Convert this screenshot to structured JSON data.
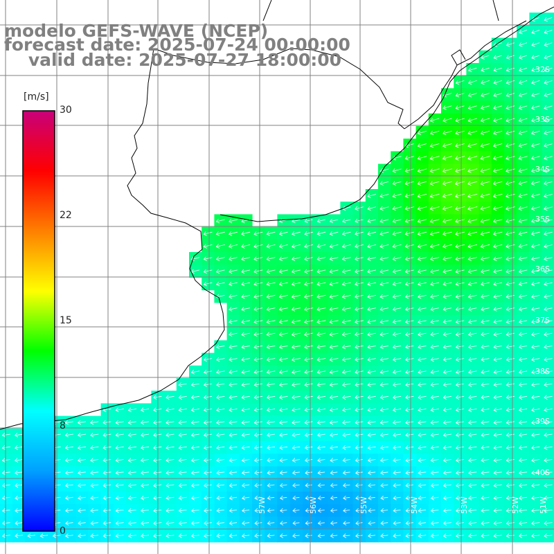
{
  "title": {
    "line1": "modelo GEFS-WAVE (NCEP)",
    "line2": "forecast date: 2025-07-24 00:00:00",
    "line3": "    valid date: 2025-07-27 18:00:00"
  },
  "colorbar": {
    "unit": "[m/s]",
    "ticks": [
      "30",
      "22",
      "15",
      "8",
      "0"
    ],
    "min": 0,
    "max": 30,
    "colors": [
      "#0000ff",
      "#00a0ff",
      "#00ffff",
      "#00ff00",
      "#ffff00",
      "#ff8000",
      "#ff0000",
      "#c8007a"
    ]
  },
  "lat_labels": [
    "32S",
    "33S",
    "34S",
    "35S",
    "36S",
    "37S",
    "38S",
    "39S",
    "40S"
  ],
  "lon_labels": [
    "57W",
    "56W",
    "55W",
    "54W",
    "53W",
    "52W",
    "51W"
  ],
  "colors": {
    "land": "#ffffff",
    "grid": "#808080",
    "coast": "#000000",
    "vector": "#ffffff",
    "title_text": "#808080"
  }
}
